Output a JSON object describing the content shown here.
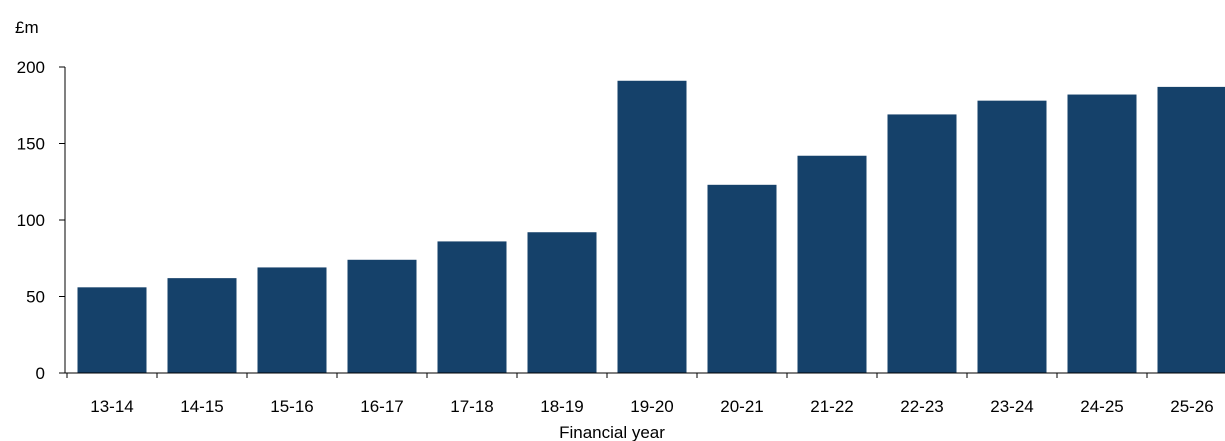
{
  "chart_data": {
    "type": "bar",
    "title": "",
    "ylabel": "£m",
    "xlabel": "Financial year",
    "ylim": [
      0,
      200
    ],
    "yticks": [
      0,
      50,
      100,
      150,
      200
    ],
    "grid": false,
    "legend": "none",
    "categories": [
      "13-14",
      "14-15",
      "15-16",
      "16-17",
      "17-18",
      "18-19",
      "19-20",
      "20-21",
      "21-22",
      "22-23",
      "23-24",
      "24-25",
      "25-26"
    ],
    "values": [
      56,
      62,
      69,
      74,
      86,
      92,
      191,
      123,
      142,
      169,
      178,
      182,
      187
    ],
    "colors": {
      "bar": "#15416A",
      "axis": "#000000"
    }
  }
}
